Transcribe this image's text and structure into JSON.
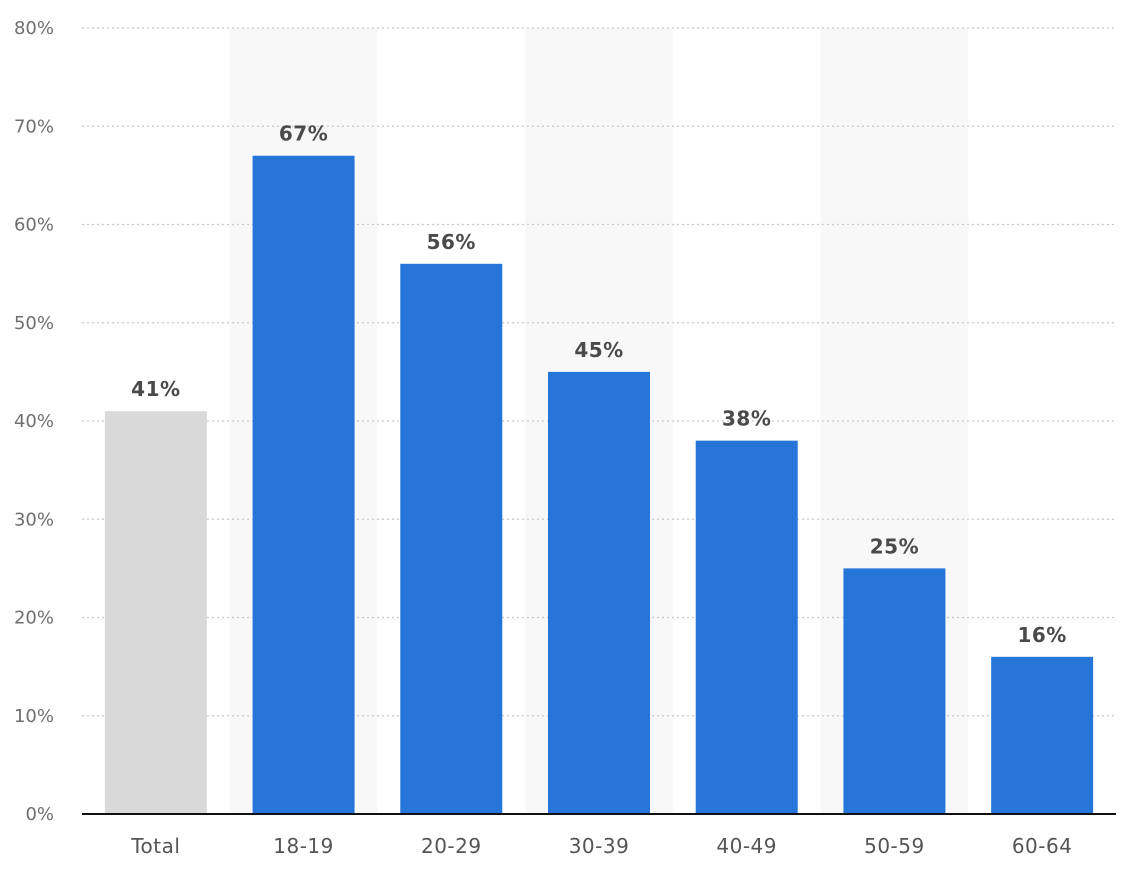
{
  "chart_data": {
    "type": "bar",
    "categories": [
      "Total",
      "18-19",
      "20-29",
      "30-39",
      "40-49",
      "50-59",
      "60-64"
    ],
    "values": [
      41,
      67,
      56,
      45,
      38,
      25,
      16
    ],
    "value_labels": [
      "41%",
      "67%",
      "56%",
      "45%",
      "38%",
      "25%",
      "16%"
    ],
    "ylim": [
      0,
      80
    ],
    "yticks": [
      0,
      10,
      20,
      30,
      40,
      50,
      60,
      70,
      80
    ],
    "ytick_labels": [
      "0%",
      "10%",
      "20%",
      "30%",
      "40%",
      "50%",
      "60%",
      "70%",
      "80%"
    ],
    "title": "",
    "xlabel": "",
    "ylabel": "",
    "grid": true,
    "colors": {
      "highlight_bar": "#d9d9d9",
      "bar": "#2675d8",
      "band": "#f8f8f8"
    }
  }
}
